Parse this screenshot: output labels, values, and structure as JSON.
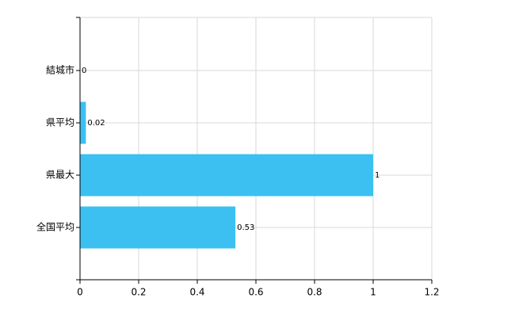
{
  "chart_data": {
    "type": "bar",
    "orientation": "horizontal",
    "categories": [
      "結城市",
      "県平均",
      "県最大",
      "全国平均"
    ],
    "values": [
      0,
      0.02,
      1,
      0.53
    ],
    "color": "#3cc0f2",
    "xlim": [
      0,
      1.2
    ],
    "xticks": [
      0,
      0.2,
      0.4,
      0.6,
      0.8,
      1,
      1.2
    ],
    "grid": true
  }
}
